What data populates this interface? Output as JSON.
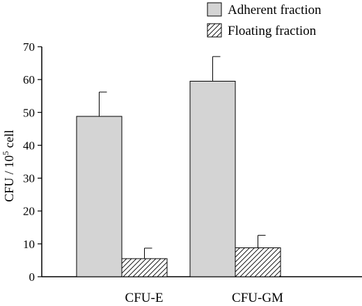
{
  "chart_data": {
    "type": "bar",
    "categories": [
      "CFU-E",
      "CFU-GM"
    ],
    "series": [
      {
        "name": "Adherent fraction",
        "values": [
          48.8,
          59.5
        ],
        "errors": [
          7.4,
          7.5
        ],
        "fill": "#d4d4d4",
        "pattern": "solid"
      },
      {
        "name": "Floating fraction",
        "values": [
          5.5,
          8.8
        ],
        "errors": [
          3.2,
          3.8
        ],
        "fill": "#ffffff",
        "pattern": "diagonal-hatch"
      }
    ],
    "ylabel": "CFU / 10⁵ cell",
    "ylabel_base": "CFU / 10",
    "ylabel_sup": "5",
    "ylabel_tail": " cell",
    "ylim": [
      0,
      70
    ],
    "yticks": [
      0,
      10,
      20,
      30,
      40,
      50,
      60,
      70
    ],
    "xlabel": "",
    "title": "",
    "grid": false,
    "legend_position": "top-right",
    "colors": {
      "axis": "#000000",
      "adherent": "#d4d4d4",
      "floating": "#ffffff",
      "hatch": "#000000"
    }
  }
}
